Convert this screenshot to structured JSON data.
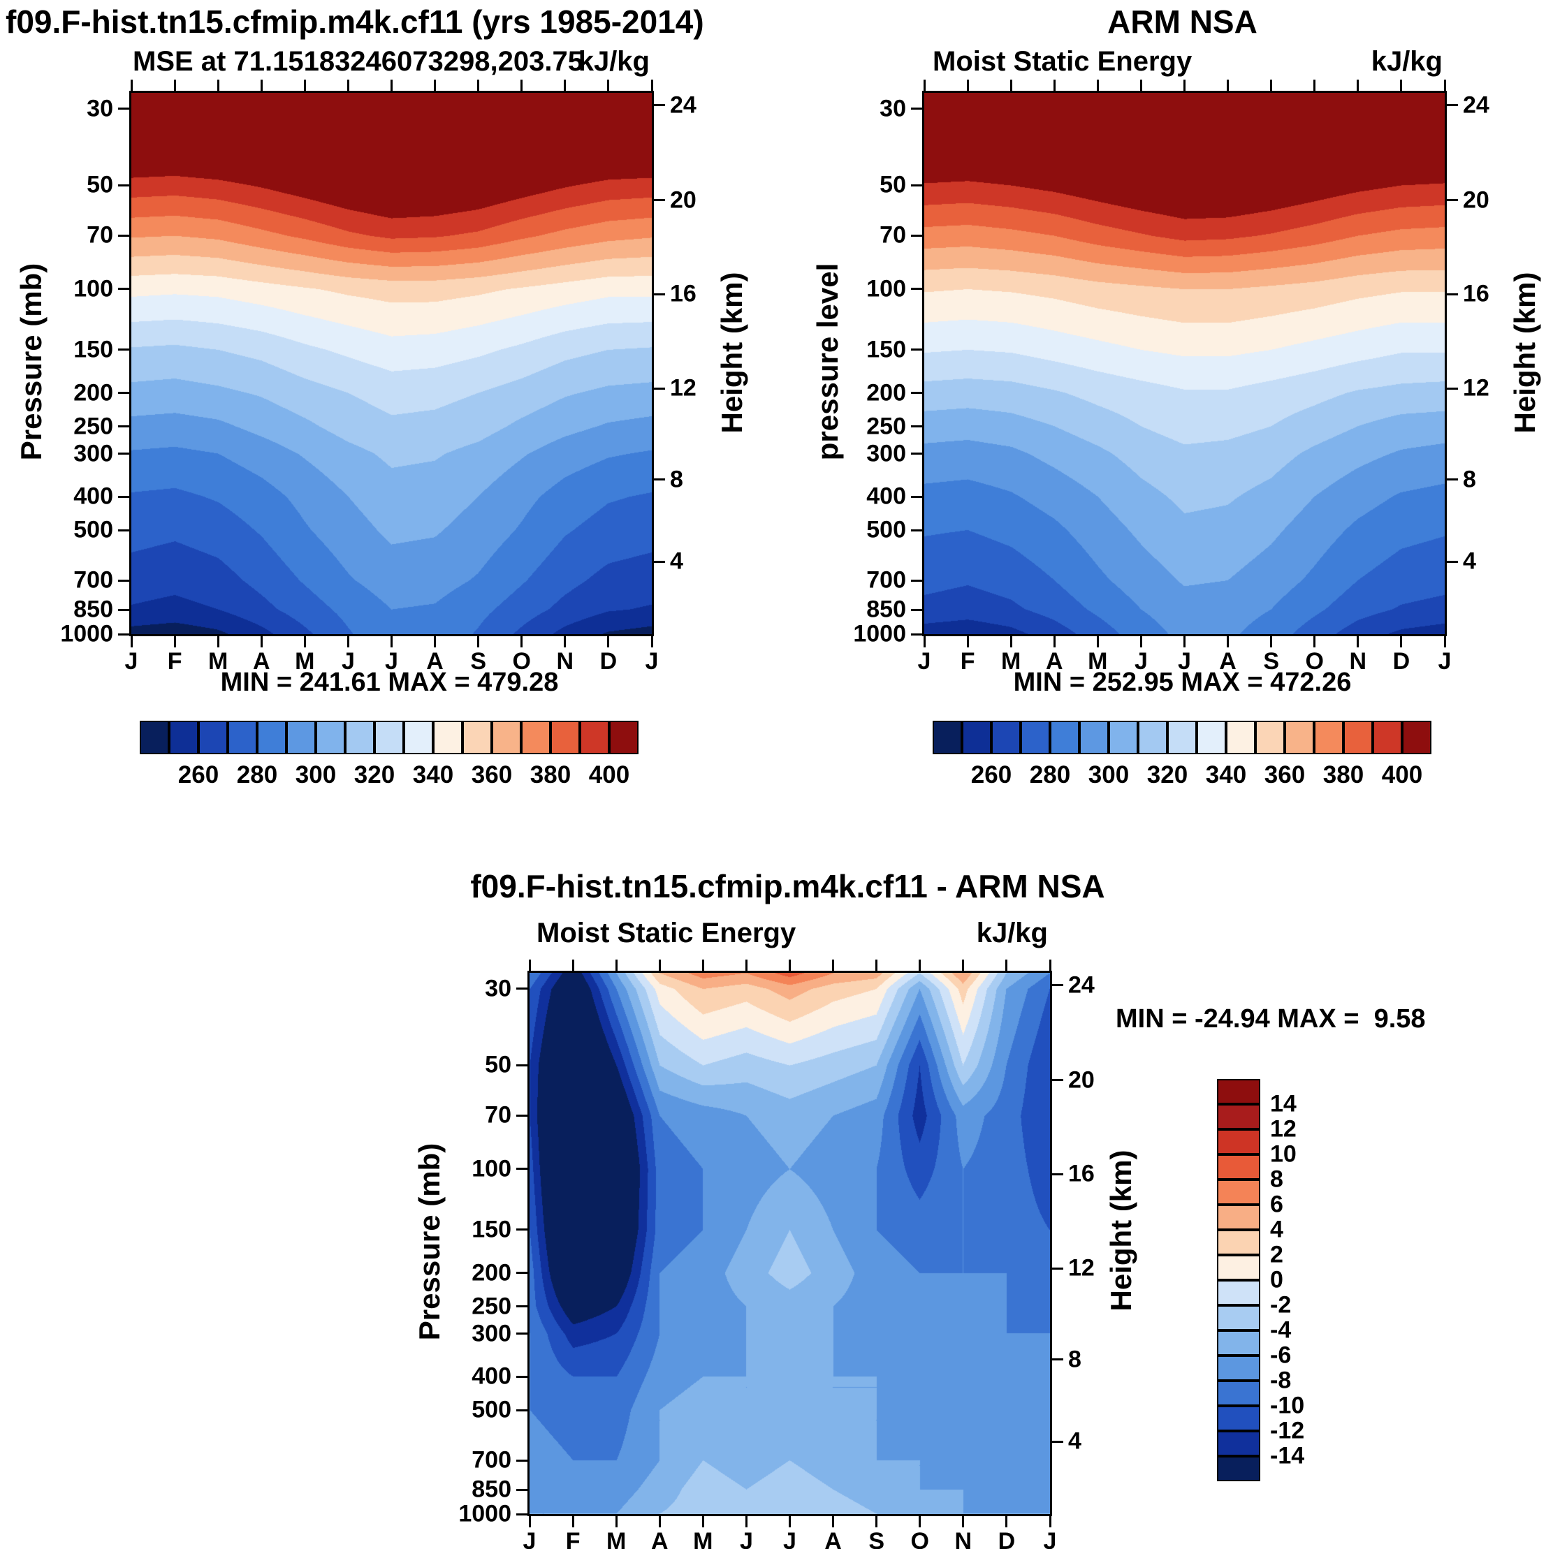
{
  "chart_data": [
    {
      "id": "model",
      "type": "heatmap",
      "title": "f09.F-hist.tn15.cfmip.m4k.cf11 (yrs 1985-2014)",
      "subtitle": "MSE at 71.15183246073298,203.75",
      "units": "kJ/kg",
      "ylabel": "Pressure (mb)",
      "ylabel_right": "Height (km)",
      "minmax": "MIN = 241.61 MAX = 479.28",
      "x_labels": [
        "J",
        "F",
        "M",
        "A",
        "M",
        "J",
        "J",
        "A",
        "S",
        "O",
        "N",
        "D",
        "J"
      ],
      "y_ticks": {
        "labels": [
          "30",
          "50",
          "70",
          "100",
          "150",
          "200",
          "250",
          "300",
          "400",
          "500",
          "700",
          "850",
          "1000"
        ],
        "pressures": [
          30,
          50,
          70,
          100,
          150,
          200,
          250,
          300,
          400,
          500,
          700,
          850,
          1000
        ]
      },
      "height_ticks": {
        "labels": [
          "24",
          "20",
          "16",
          "12",
          "8",
          "4"
        ],
        "pressures": [
          29.3,
          55.3,
          103.5,
          194.0,
          356.5,
          616.6
        ]
      },
      "p_top": 27,
      "p_bottom": 1000,
      "grid": {
        "pressures": [
          27,
          30,
          50,
          70,
          100,
          150,
          200,
          250,
          300,
          400,
          500,
          700,
          850,
          1000
        ],
        "values": [
          [
            451,
            450,
            452,
            455,
            458,
            462,
            465,
            465,
            462,
            458,
            455,
            452,
            451
          ],
          [
            436,
            435,
            437,
            440,
            443,
            447,
            450,
            450,
            447,
            443,
            440,
            437,
            436
          ],
          [
            396,
            395,
            397,
            401,
            406,
            411,
            415,
            414,
            411,
            406,
            401,
            397,
            396
          ],
          [
            371,
            370,
            372,
            377,
            382,
            388,
            392,
            391,
            388,
            382,
            377,
            373,
            371
          ],
          [
            343,
            342,
            343,
            346,
            349,
            352,
            354,
            354,
            352,
            349,
            346,
            343,
            343
          ],
          [
            319,
            318,
            320,
            323,
            328,
            332,
            336,
            335,
            332,
            328,
            323,
            320,
            319
          ],
          [
            307,
            306,
            308,
            311,
            316,
            320,
            324,
            323,
            320,
            316,
            311,
            308,
            307
          ],
          [
            297,
            296,
            298,
            303,
            308,
            314,
            318,
            317,
            314,
            308,
            303,
            299,
            297
          ],
          [
            289,
            288,
            290,
            295,
            301,
            307,
            312,
            311,
            307,
            301,
            295,
            291,
            289
          ],
          [
            279,
            278,
            281,
            286,
            293,
            300,
            306,
            305,
            300,
            293,
            286,
            281,
            279
          ],
          [
            274,
            272,
            275,
            281,
            289,
            296,
            302,
            301,
            296,
            289,
            281,
            276,
            274
          ],
          [
            265,
            263,
            266,
            273,
            281,
            289,
            295,
            294,
            289,
            281,
            273,
            267,
            265
          ],
          [
            259,
            257,
            260,
            267,
            275,
            283,
            290,
            289,
            283,
            275,
            267,
            261,
            259
          ],
          [
            246,
            244,
            248,
            257,
            268,
            279,
            288,
            287,
            279,
            268,
            257,
            249,
            246
          ]
        ]
      },
      "levels": [
        250,
        260,
        270,
        280,
        290,
        300,
        310,
        320,
        330,
        340,
        350,
        360,
        370,
        380,
        390,
        400
      ],
      "palette": [
        "#081f5c",
        "#0e2f96",
        "#1c46b4",
        "#2c62ca",
        "#3f7ed8",
        "#5d98e2",
        "#80b3ec",
        "#a3c9f2",
        "#c5ddf7",
        "#e3effb",
        "#fdf1e3",
        "#fbd5b6",
        "#f8b389",
        "#f48a5c",
        "#e8613c",
        "#ce3727",
        "#8e0e0e"
      ],
      "colorbar_labels": [
        "260",
        "280",
        "300",
        "320",
        "340",
        "360",
        "380",
        "400"
      ]
    },
    {
      "id": "obs",
      "type": "heatmap",
      "title": "ARM NSA",
      "subtitle": "Moist Static Energy",
      "units": "kJ/kg",
      "ylabel": "pressure level",
      "ylabel_right": "Height (km)",
      "minmax": "MIN = 252.95 MAX = 472.26",
      "x_labels": [
        "J",
        "F",
        "M",
        "A",
        "M",
        "J",
        "J",
        "A",
        "S",
        "O",
        "N",
        "D",
        "J"
      ],
      "y_ticks": {
        "labels": [
          "30",
          "50",
          "70",
          "100",
          "150",
          "200",
          "250",
          "300",
          "400",
          "500",
          "700",
          "850",
          "1000"
        ],
        "pressures": [
          30,
          50,
          70,
          100,
          150,
          200,
          250,
          300,
          400,
          500,
          700,
          850,
          1000
        ]
      },
      "height_ticks": {
        "labels": [
          "24",
          "20",
          "16",
          "12",
          "8",
          "4"
        ],
        "pressures": [
          29.3,
          55.3,
          103.5,
          194.0,
          356.5,
          616.6
        ]
      },
      "p_top": 27,
      "p_bottom": 1000,
      "grid": {
        "pressures": [
          27,
          30,
          50,
          70,
          100,
          150,
          200,
          250,
          300,
          400,
          500,
          700,
          850,
          1000
        ],
        "values": [
          [
            449,
            448,
            449,
            451,
            454,
            456,
            458,
            458,
            456,
            454,
            451,
            449,
            449
          ],
          [
            434,
            433,
            434,
            436,
            439,
            441,
            443,
            443,
            441,
            439,
            436,
            434,
            434
          ],
          [
            399,
            398,
            400,
            403,
            407,
            411,
            414,
            414,
            411,
            407,
            403,
            400,
            399
          ],
          [
            376,
            375,
            377,
            380,
            385,
            389,
            393,
            392,
            389,
            385,
            380,
            377,
            376
          ],
          [
            351,
            350,
            351,
            353,
            356,
            358,
            360,
            360,
            358,
            356,
            353,
            351,
            351
          ],
          [
            331,
            330,
            331,
            334,
            337,
            340,
            342,
            342,
            340,
            337,
            334,
            331,
            331
          ],
          [
            316,
            315,
            316,
            319,
            323,
            326,
            329,
            329,
            326,
            323,
            319,
            317,
            316
          ],
          [
            305,
            304,
            306,
            310,
            315,
            320,
            324,
            323,
            320,
            315,
            310,
            306,
            305
          ],
          [
            297,
            296,
            298,
            303,
            308,
            314,
            318,
            317,
            314,
            308,
            303,
            299,
            297
          ],
          [
            287,
            286,
            289,
            294,
            300,
            307,
            312,
            311,
            307,
            300,
            294,
            289,
            287
          ],
          [
            281,
            280,
            283,
            288,
            295,
            302,
            308,
            307,
            302,
            295,
            288,
            283,
            281
          ],
          [
            273,
            271,
            274,
            280,
            288,
            295,
            301,
            300,
            295,
            288,
            280,
            275,
            273
          ],
          [
            267,
            265,
            268,
            274,
            282,
            290,
            296,
            295,
            290,
            282,
            274,
            269,
            267
          ],
          [
            255,
            253,
            257,
            265,
            275,
            285,
            293,
            292,
            285,
            275,
            265,
            258,
            255
          ]
        ]
      },
      "levels": [
        250,
        260,
        270,
        280,
        290,
        300,
        310,
        320,
        330,
        340,
        350,
        360,
        370,
        380,
        390,
        400
      ],
      "palette": [
        "#081f5c",
        "#0e2f96",
        "#1c46b4",
        "#2c62ca",
        "#3f7ed8",
        "#5d98e2",
        "#80b3ec",
        "#a3c9f2",
        "#c5ddf7",
        "#e3effb",
        "#fdf1e3",
        "#fbd5b6",
        "#f8b389",
        "#f48a5c",
        "#e8613c",
        "#ce3727",
        "#8e0e0e"
      ],
      "colorbar_labels": [
        "260",
        "280",
        "300",
        "320",
        "340",
        "360",
        "380",
        "400"
      ]
    },
    {
      "id": "diff",
      "type": "heatmap",
      "title": "f09.F-hist.tn15.cfmip.m4k.cf11 - ARM NSA",
      "subtitle": "Moist Static Energy",
      "units": "kJ/kg",
      "ylabel": "Pressure (mb)",
      "ylabel_right": "Height (km)",
      "minmax": "MIN = -24.94 MAX =  9.58",
      "x_labels": [
        "J",
        "F",
        "M",
        "A",
        "M",
        "J",
        "J",
        "A",
        "S",
        "O",
        "N",
        "D",
        "J"
      ],
      "y_ticks": {
        "labels": [
          "30",
          "50",
          "70",
          "100",
          "150",
          "200",
          "250",
          "300",
          "400",
          "500",
          "700",
          "850",
          "1000"
        ],
        "pressures": [
          30,
          50,
          70,
          100,
          150,
          200,
          250,
          300,
          400,
          500,
          700,
          850,
          1000
        ]
      },
      "height_ticks": {
        "labels": [
          "24",
          "20",
          "16",
          "12",
          "8",
          "4"
        ],
        "pressures": [
          29.3,
          55.3,
          103.5,
          194.0,
          356.5,
          616.6
        ]
      },
      "p_top": 27,
      "p_bottom": 1000,
      "grid": {
        "pressures": [
          27,
          30,
          50,
          70,
          100,
          150,
          200,
          250,
          300,
          400,
          500,
          700,
          850,
          1000
        ],
        "values": [
          [
            -8,
            -16,
            -6,
            4,
            7,
            6,
            9,
            6,
            5,
            -2,
            6,
            -4,
            -8
          ],
          [
            -10,
            -18,
            -8,
            1,
            4,
            3,
            5,
            3,
            2,
            -6,
            3,
            -6,
            -10
          ],
          [
            -12,
            -22,
            -14,
            -4,
            -2,
            -3,
            -2,
            -3,
            -4,
            -12,
            -2,
            -8,
            -12
          ],
          [
            -12,
            -24,
            -18,
            -8,
            -7,
            -6,
            -5,
            -6,
            -7,
            -13,
            -7,
            -9,
            -12
          ],
          [
            -11,
            -24,
            -20,
            -9,
            -8,
            -7,
            -6,
            -7,
            -8,
            -11,
            -8,
            -9,
            -11
          ],
          [
            -10,
            -22,
            -19,
            -9,
            -8,
            -6,
            -4,
            -6,
            -8,
            -9,
            -8,
            -9,
            -10
          ],
          [
            -9,
            -20,
            -17,
            -8,
            -7,
            -5,
            -3,
            -5,
            -7,
            -8,
            -8,
            -8,
            -9
          ],
          [
            -9,
            -16,
            -14,
            -8,
            -7,
            -6,
            -5,
            -6,
            -7,
            -7,
            -7,
            -8,
            -9
          ],
          [
            -8,
            -13,
            -12,
            -8,
            -7,
            -6,
            -6,
            -6,
            -7,
            -7,
            -7,
            -8,
            -8
          ],
          [
            -8,
            -10,
            -10,
            -7,
            -6,
            -6,
            -6,
            -6,
            -6,
            -7,
            -7,
            -8,
            -8
          ],
          [
            -8,
            -9,
            -9,
            -6,
            -5,
            -6,
            -5,
            -6,
            -6,
            -7,
            -7,
            -8,
            -8
          ],
          [
            -7,
            -8,
            -8,
            -6,
            -4,
            -5,
            -4,
            -5,
            -6,
            -6,
            -7,
            -7,
            -7
          ],
          [
            -7,
            -7,
            -7,
            -5,
            -3,
            -4,
            -3,
            -4,
            -5,
            -6,
            -6,
            -7,
            -7
          ],
          [
            -6,
            -6,
            -6,
            -4,
            -3,
            -3,
            -3,
            -3,
            -4,
            -5,
            -6,
            -6,
            -6
          ]
        ]
      },
      "levels": [
        -14,
        -12,
        -10,
        -8,
        -6,
        -4,
        -2,
        0,
        2,
        4,
        6,
        8,
        10,
        12,
        14
      ],
      "palette": [
        "#081f5c",
        "#10309c",
        "#2150be",
        "#3a74d2",
        "#5c97e0",
        "#82b4ea",
        "#a8ccf2",
        "#cfe2f8",
        "#fdf0e2",
        "#fbd3b2",
        "#f8ae85",
        "#f48357",
        "#e85a38",
        "#ce3425",
        "#a81c1c",
        "#8e0e0e"
      ],
      "colorbar_labels": [
        "14",
        "12",
        "10",
        "8",
        "6",
        "4",
        "2",
        "0",
        "-2",
        "-4",
        "-6",
        "-8",
        "-10",
        "-12",
        "-14"
      ]
    }
  ]
}
